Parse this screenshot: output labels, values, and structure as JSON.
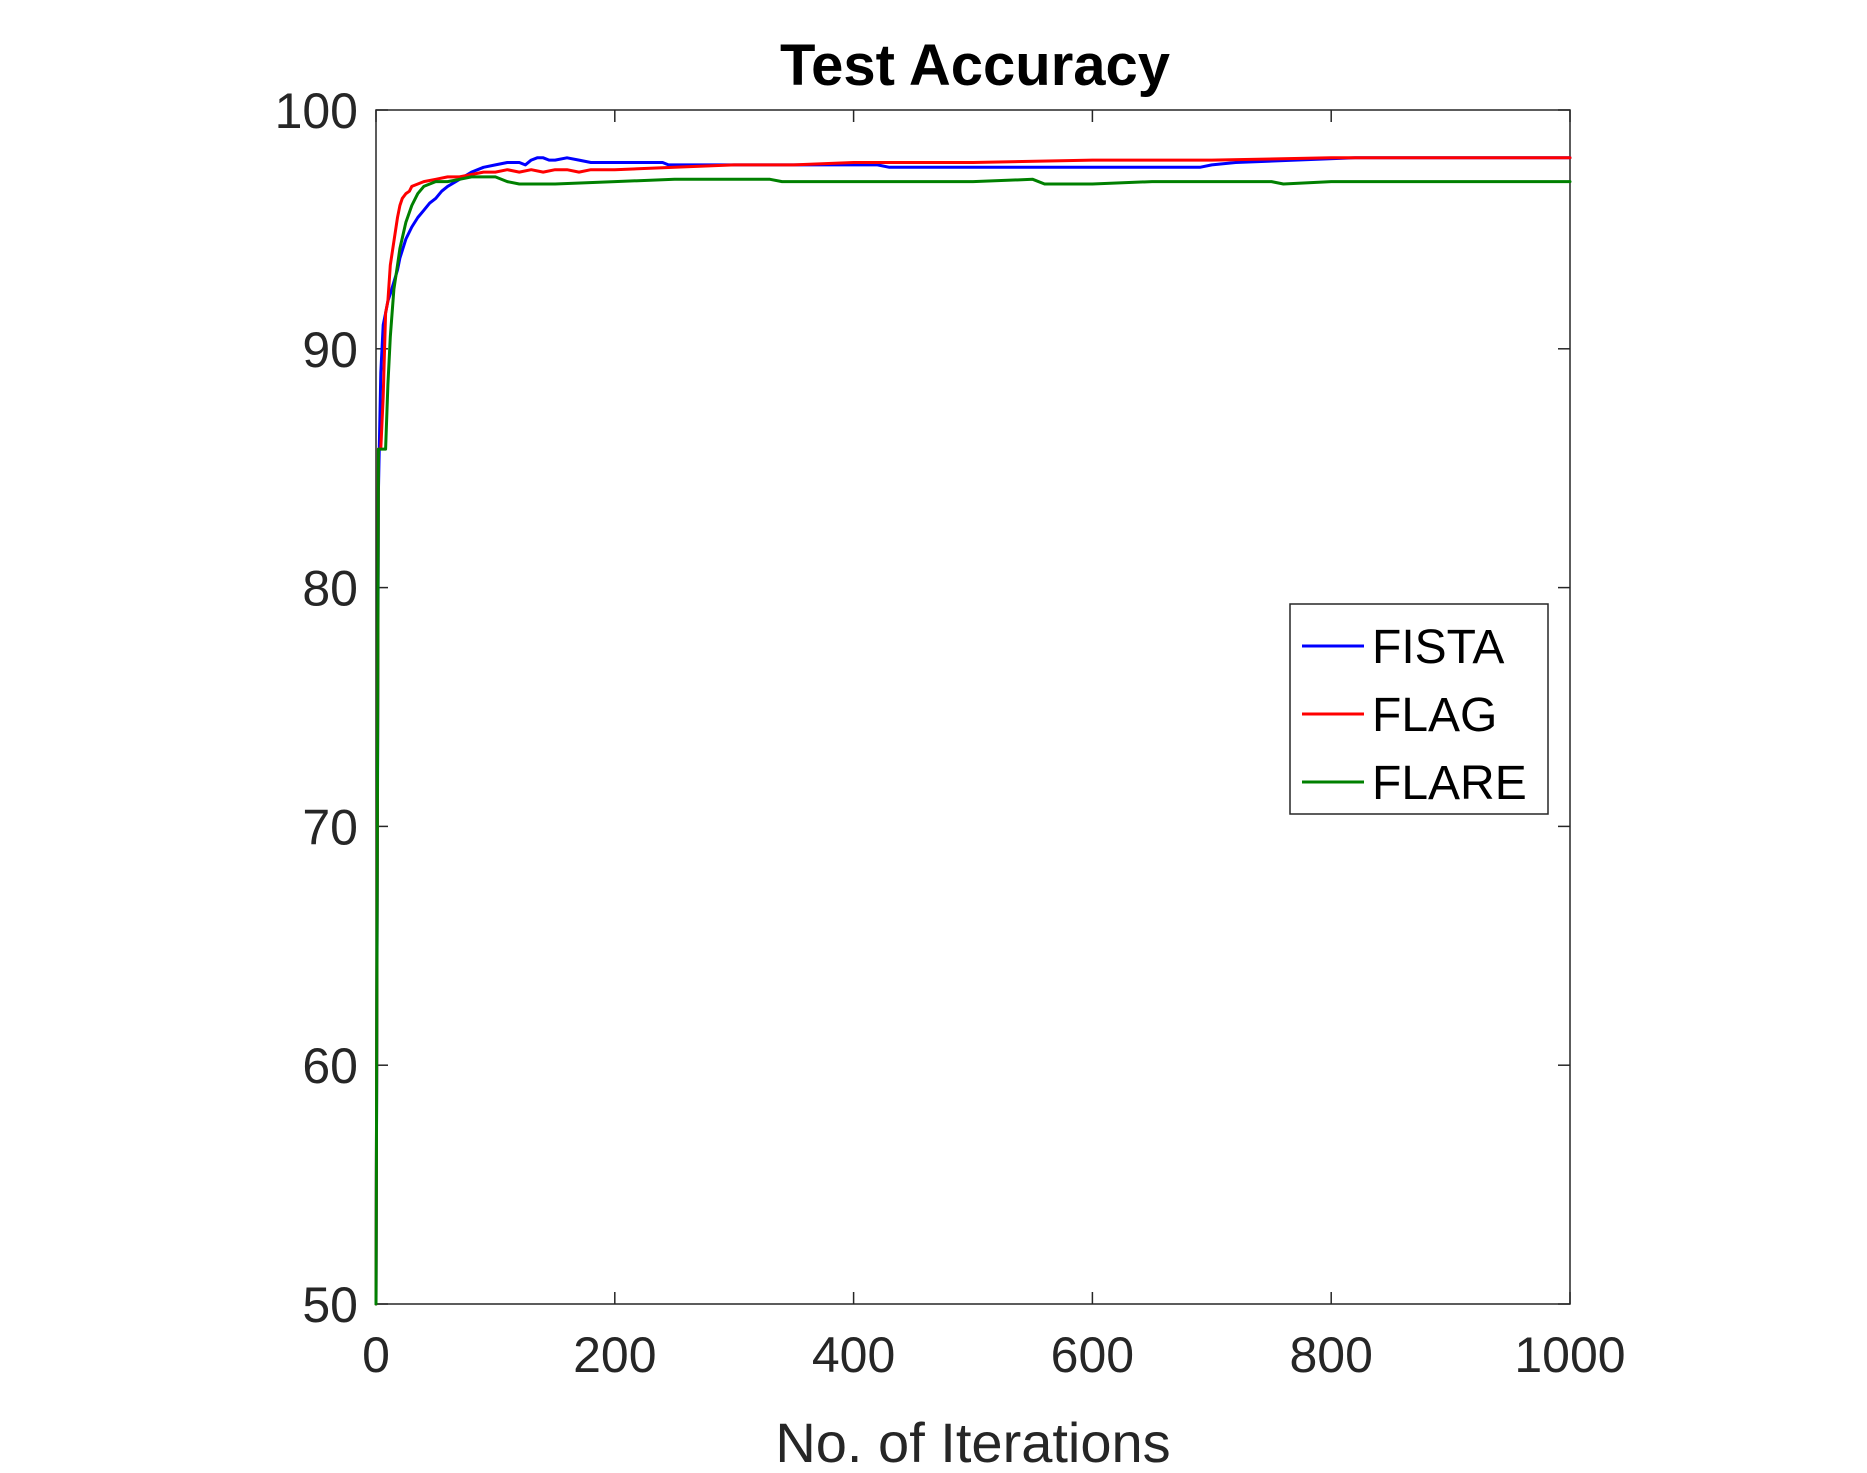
{
  "chart_data": {
    "type": "line",
    "title": "Test Accuracy",
    "xlabel": "No. of Iterations",
    "ylabel": "",
    "xlim": [
      0,
      1000
    ],
    "ylim": [
      50,
      100
    ],
    "xticks": [
      "0",
      "200",
      "400",
      "600",
      "800",
      "1000"
    ],
    "yticks": [
      "50",
      "60",
      "70",
      "80",
      "90",
      "100"
    ],
    "grid": false,
    "legend_position": "right",
    "series": [
      {
        "name": "FISTA",
        "color": "#0000ff",
        "x": [
          0,
          2,
          4,
          6,
          8,
          10,
          12,
          15,
          18,
          20,
          25,
          30,
          35,
          40,
          45,
          50,
          55,
          60,
          70,
          80,
          90,
          100,
          110,
          120,
          125,
          130,
          135,
          140,
          145,
          150,
          160,
          170,
          180,
          200,
          240,
          245,
          300,
          340,
          380,
          420,
          430,
          500,
          600,
          690,
          700,
          720,
          820,
          900,
          1000
        ],
        "y": [
          50,
          84,
          89,
          91,
          91.5,
          92,
          92.3,
          92.8,
          93.3,
          93.8,
          94.6,
          95.1,
          95.5,
          95.8,
          96.1,
          96.3,
          96.6,
          96.8,
          97.1,
          97.4,
          97.6,
          97.7,
          97.8,
          97.8,
          97.7,
          97.9,
          98.0,
          98.0,
          97.9,
          97.9,
          98.0,
          97.9,
          97.8,
          97.8,
          97.8,
          97.7,
          97.7,
          97.7,
          97.7,
          97.7,
          97.6,
          97.6,
          97.6,
          97.6,
          97.7,
          97.8,
          98.0,
          98.0,
          98.0
        ]
      },
      {
        "name": "FLAG",
        "color": "#ff0000",
        "x": [
          0,
          2,
          4,
          6,
          8,
          10,
          12,
          15,
          18,
          20,
          22,
          25,
          28,
          30,
          35,
          40,
          50,
          60,
          70,
          80,
          90,
          100,
          110,
          120,
          130,
          140,
          150,
          160,
          170,
          180,
          200,
          250,
          300,
          350,
          400,
          500,
          600,
          700,
          800,
          900,
          1000
        ],
        "y": [
          50,
          85.8,
          85.8,
          88,
          91.5,
          92,
          93.5,
          94.5,
          95.5,
          96.0,
          96.3,
          96.5,
          96.6,
          96.8,
          96.9,
          97.0,
          97.1,
          97.2,
          97.2,
          97.3,
          97.4,
          97.4,
          97.5,
          97.4,
          97.5,
          97.4,
          97.5,
          97.5,
          97.4,
          97.5,
          97.5,
          97.6,
          97.7,
          97.7,
          97.8,
          97.8,
          97.9,
          97.9,
          98.0,
          98.0,
          98.0
        ]
      },
      {
        "name": "FLARE",
        "color": "#008000",
        "x": [
          0,
          2,
          4,
          6,
          8,
          10,
          12,
          15,
          18,
          20,
          25,
          30,
          35,
          40,
          50,
          60,
          70,
          80,
          90,
          100,
          110,
          120,
          130,
          150,
          200,
          250,
          300,
          330,
          340,
          400,
          500,
          550,
          560,
          600,
          650,
          700,
          750,
          760,
          800,
          900,
          1000
        ],
        "y": [
          50,
          85.8,
          85.8,
          85.8,
          85.8,
          88.5,
          90.5,
          92.5,
          93.5,
          94.2,
          95.3,
          96.0,
          96.5,
          96.8,
          97.0,
          97.0,
          97.1,
          97.2,
          97.2,
          97.2,
          97.0,
          96.9,
          96.9,
          96.9,
          97.0,
          97.1,
          97.1,
          97.1,
          97.0,
          97.0,
          97.0,
          97.1,
          96.9,
          96.9,
          97.0,
          97.0,
          97.0,
          96.9,
          97.0,
          97.0,
          97.0
        ]
      }
    ]
  }
}
